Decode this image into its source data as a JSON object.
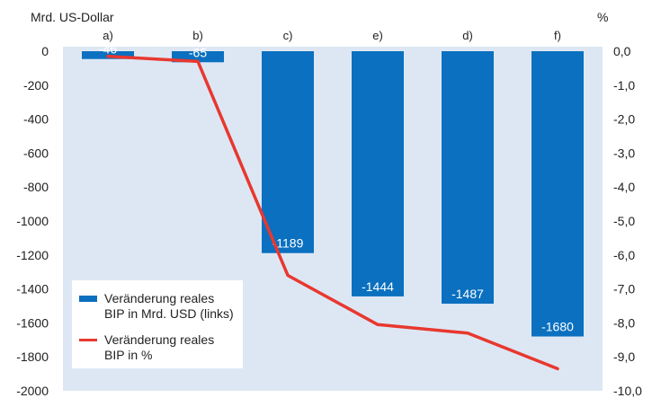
{
  "chart_data": {
    "type": "bar",
    "left_axis_title": "Mrd. US-Dollar",
    "right_axis_title": "%",
    "categories": [
      "a)",
      "b)",
      "c)",
      "e)",
      "d)",
      "f)"
    ],
    "series": [
      {
        "name": "Veränderung reales BIP in Mrd. USD (links)",
        "type": "bar",
        "axis": "left",
        "color": "#0a70bf",
        "values": [
          -46,
          -65,
          -1189,
          -1444,
          -1487,
          -1680
        ]
      },
      {
        "name": "Veränderung reales BIP in %",
        "type": "line",
        "axis": "right",
        "color": "#e8382f",
        "values": [
          -0.15,
          -0.3,
          -6.6,
          -8.05,
          -8.3,
          -9.35
        ]
      }
    ],
    "ylim_left": [
      -2000,
      0
    ],
    "ylim_right": [
      -10,
      0
    ],
    "yticks_left": [
      "0",
      "-200",
      "-400",
      "-600",
      "-800",
      "-1000",
      "-1200",
      "-1400",
      "-1600",
      "-1800",
      "-2000"
    ],
    "yticks_right": [
      "0,0",
      "-1,0",
      "-2,0",
      "-3,0",
      "-4,0",
      "-5,0",
      "-6,0",
      "-7,0",
      "-8,0",
      "-9,0",
      "-10,0"
    ],
    "plot_background": "#dde7f4",
    "grid": false,
    "legend_position": "bottom-left",
    "legend": [
      {
        "line1": "Veränderung reales",
        "line2": "BIP in Mrd. USD (links)"
      },
      {
        "line1": "Veränderung reales",
        "line2": "BIP in %"
      }
    ]
  }
}
